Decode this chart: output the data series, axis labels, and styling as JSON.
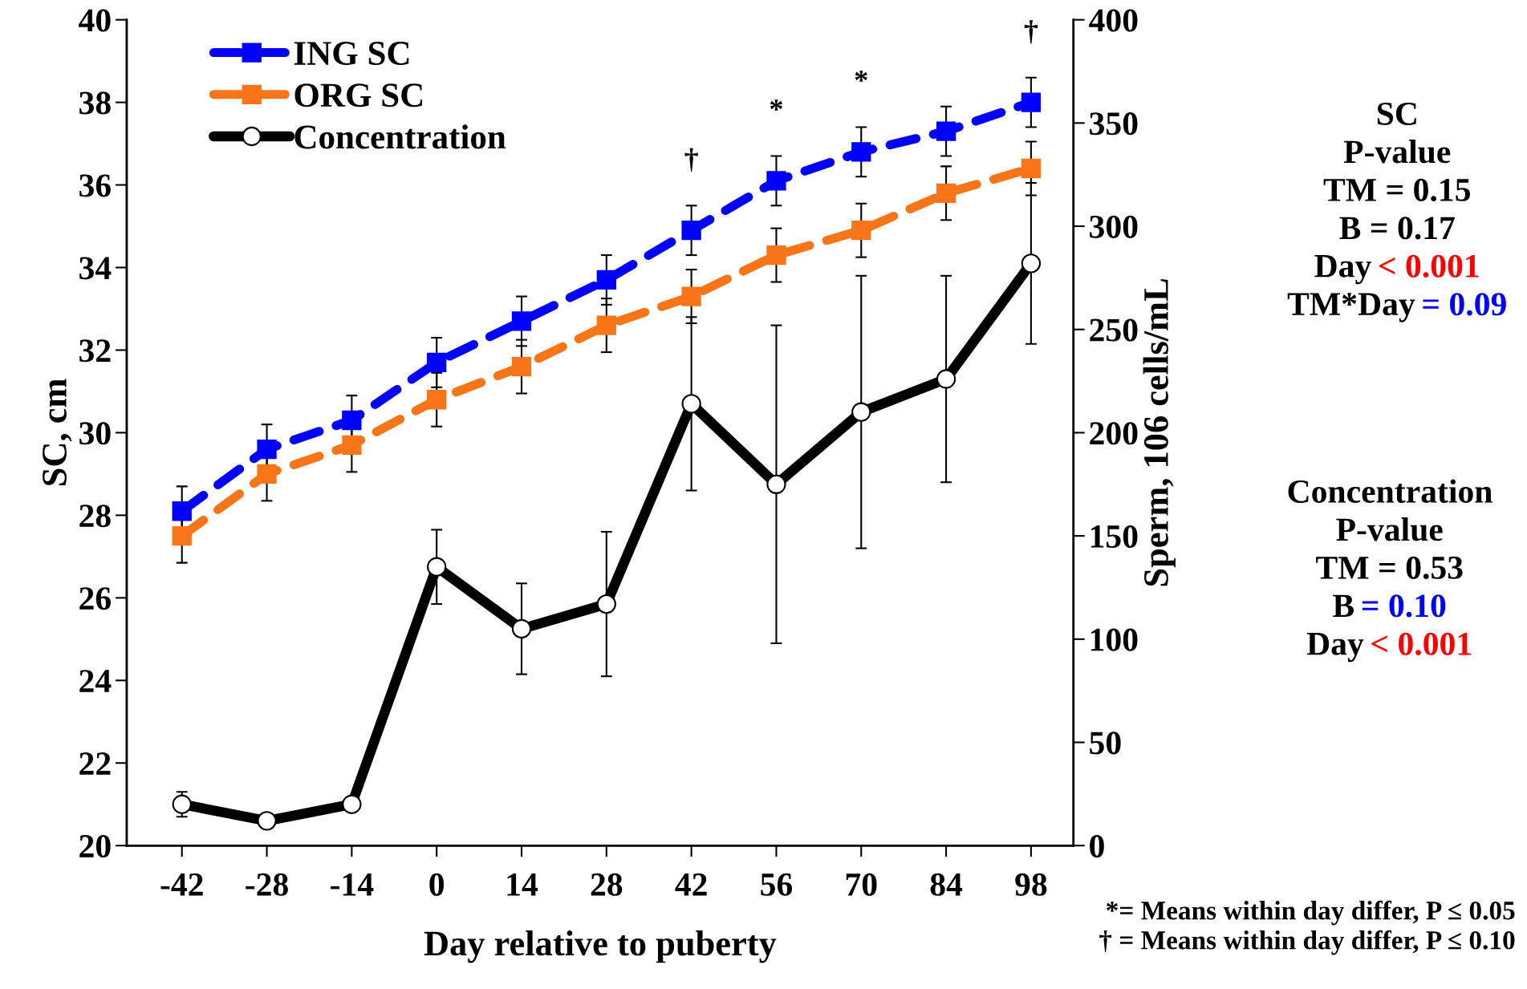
{
  "chart_data": {
    "type": "line",
    "xlabel": "Day relative to puberty",
    "ylabel": "SC, cm",
    "y2label": "Sperm, 106 cells/mL",
    "categories": [
      "-42",
      "-28",
      "-14",
      "0",
      "14",
      "28",
      "42",
      "56",
      "70",
      "84",
      "98"
    ],
    "series": [
      {
        "name": "ING SC",
        "color": "#0000ff",
        "marker": "square",
        "line_style": "dashed",
        "values": [
          28.1,
          29.6,
          30.3,
          31.7,
          32.7,
          33.7,
          34.9,
          36.1,
          36.8,
          37.3,
          38.0
        ],
        "errors": [
          0.6,
          0.6,
          0.6,
          0.6,
          0.6,
          0.6,
          0.6,
          0.6,
          0.6,
          0.6,
          0.6
        ]
      },
      {
        "name": "ORG SC",
        "color": "#f97518",
        "marker": "square",
        "line_style": "dashed",
        "values": [
          27.5,
          29.0,
          29.7,
          30.8,
          31.6,
          32.6,
          33.3,
          34.3,
          34.9,
          35.8,
          36.4
        ],
        "errors": [
          0.65,
          0.65,
          0.65,
          0.65,
          0.65,
          0.65,
          0.65,
          0.65,
          0.65,
          0.65,
          0.65
        ]
      },
      {
        "name": "Concentration",
        "color": "#000000",
        "marker": "circle",
        "line_style": "solid",
        "axis": "y2",
        "values": [
          20,
          12,
          20,
          135,
          105,
          117,
          214,
          175,
          210,
          226,
          282
        ],
        "errors": [
          6,
          null,
          null,
          18,
          22,
          35,
          42,
          77,
          66,
          50,
          39
        ]
      }
    ],
    "ylim": [
      20,
      40
    ],
    "yticks": [
      20,
      22,
      24,
      26,
      28,
      30,
      32,
      34,
      36,
      38,
      40
    ],
    "y2lim": [
      0,
      400
    ],
    "y2ticks": [
      0,
      50,
      100,
      150,
      200,
      250,
      300,
      350,
      400
    ],
    "grid": false,
    "legend": "top left",
    "annotations": [
      {
        "text": "†",
        "x": "42",
        "y": 34.9
      },
      {
        "text": "*",
        "x": "56",
        "y": 36.1
      },
      {
        "text": "*",
        "x": "70",
        "y": 36.8
      },
      {
        "text": "†",
        "x": "98",
        "y": 38.0
      },
      "SC",
      "P-value",
      "TM = 0.15",
      "B = 0.17",
      "Day",
      {
        "text": "< 0.001"
      },
      "TM*Day",
      {
        "text": "= 0.09"
      },
      "Concentration",
      "P-value",
      "TM = 0.53",
      "B",
      {
        "text": "= 0.10"
      },
      "Day",
      {
        "text": "< 0.001"
      },
      "*= Means within day differ, P ≤ 0.05",
      "† = Means within day differ, P ≤ 0.10"
    ]
  }
}
